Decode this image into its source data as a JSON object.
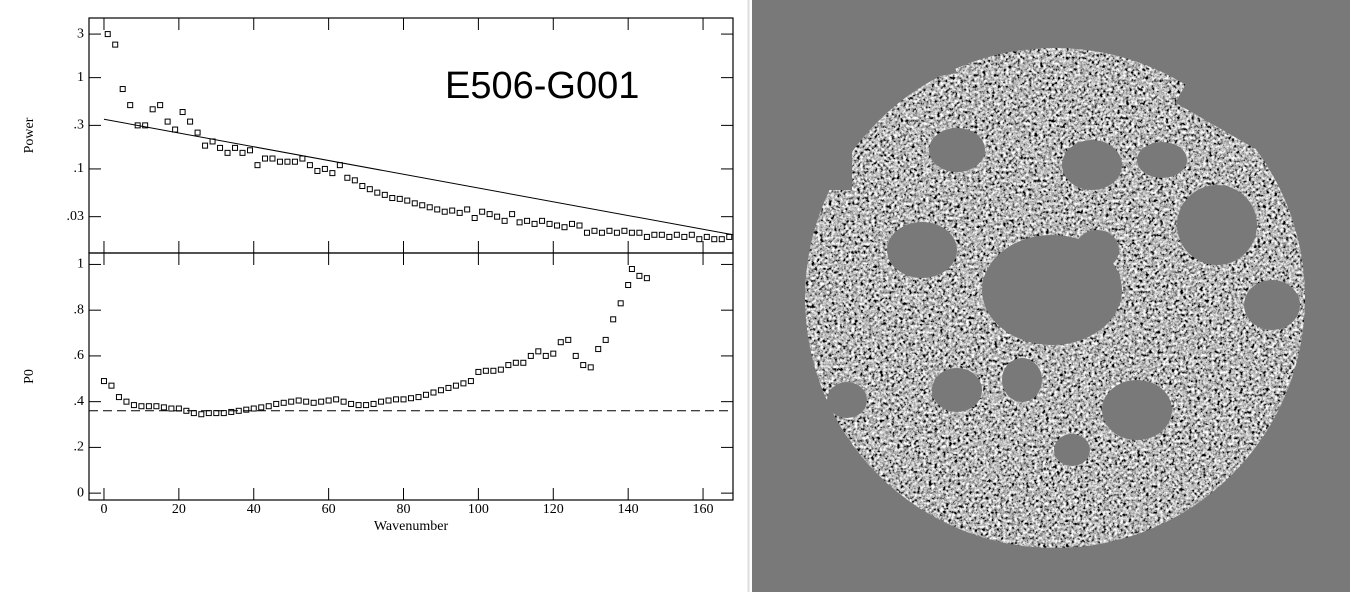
{
  "chart_data": [
    {
      "type": "scatter",
      "log_y": true,
      "ylabel": "Power",
      "annotation": "E506-G001",
      "xlim": [
        -4,
        168
      ],
      "xticks": [
        0,
        20,
        40,
        60,
        80,
        100,
        120,
        140,
        160
      ],
      "xticklabels": false,
      "ylim": [
        0.012,
        4.5
      ],
      "yticks": [
        3,
        1,
        {
          "value": 0.3,
          "label": ".3"
        },
        {
          "value": 0.1,
          "label": ".1"
        },
        {
          "value": 0.03,
          "label": ".03"
        }
      ],
      "series": [
        {
          "marker": "square",
          "x": [
            1,
            3,
            5,
            7,
            9,
            11,
            13,
            15,
            17,
            19,
            21,
            23,
            25,
            27,
            29,
            31,
            33,
            35,
            37,
            39,
            41,
            43,
            45,
            47,
            49,
            51,
            53,
            55,
            57,
            59,
            61,
            63,
            65,
            67,
            69,
            71,
            73,
            75,
            77,
            79,
            81,
            83,
            85,
            87,
            89,
            91,
            93,
            95,
            97,
            99,
            101,
            103,
            105,
            107,
            109,
            111,
            113,
            115,
            117,
            119,
            121,
            123,
            125,
            127,
            129,
            131,
            133,
            135,
            137,
            139,
            141,
            143,
            145,
            147,
            149,
            151,
            153,
            155,
            157,
            159,
            161,
            163,
            165,
            167
          ],
          "values": [
            3,
            2.3,
            0.75,
            0.5,
            0.3,
            0.3,
            0.45,
            0.5,
            0.33,
            0.27,
            0.42,
            0.33,
            0.25,
            0.18,
            0.2,
            0.17,
            0.15,
            0.17,
            0.15,
            0.16,
            0.11,
            0.13,
            0.13,
            0.12,
            0.12,
            0.12,
            0.13,
            0.11,
            0.095,
            0.1,
            0.09,
            0.11,
            0.08,
            0.075,
            0.065,
            0.06,
            0.055,
            0.052,
            0.048,
            0.047,
            0.045,
            0.042,
            0.04,
            0.038,
            0.036,
            0.034,
            0.035,
            0.033,
            0.036,
            0.029,
            0.034,
            0.032,
            0.03,
            0.027,
            0.032,
            0.026,
            0.027,
            0.025,
            0.027,
            0.025,
            0.024,
            0.023,
            0.025,
            0.024,
            0.02,
            0.021,
            0.02,
            0.021,
            0.02,
            0.021,
            0.02,
            0.02,
            0.018,
            0.019,
            0.019,
            0.018,
            0.019,
            0.018,
            0.019,
            0.017,
            0.018,
            0.017,
            0.017,
            0.018
          ]
        },
        {
          "marker": "line",
          "x": [
            0,
            168
          ],
          "values": [
            0.35,
            0.019
          ]
        }
      ]
    },
    {
      "type": "scatter",
      "log_y": false,
      "ylabel": "P0",
      "xlabel": "Wavenumber",
      "xlim": [
        -4,
        168
      ],
      "xticks": [
        0,
        20,
        40,
        60,
        80,
        100,
        120,
        140,
        160
      ],
      "xticklabels": true,
      "ylim": [
        -0.03,
        1.05
      ],
      "yticks": [
        0,
        {
          "value": 0.2,
          "label": ".2"
        },
        {
          "value": 0.4,
          "label": ".4"
        },
        {
          "value": 0.6,
          "label": ".6"
        },
        {
          "value": 0.8,
          "label": ".8"
        },
        1
      ],
      "series": [
        {
          "marker": "square",
          "x": [
            0,
            2,
            4,
            6,
            8,
            10,
            12,
            14,
            16,
            18,
            20,
            22,
            24,
            26,
            28,
            30,
            32,
            34,
            36,
            38,
            40,
            42,
            44,
            46,
            48,
            50,
            52,
            54,
            56,
            58,
            60,
            62,
            64,
            66,
            68,
            70,
            72,
            74,
            76,
            78,
            80,
            82,
            84,
            86,
            88,
            90,
            92,
            94,
            96,
            98,
            100,
            102,
            104,
            106,
            108,
            110,
            112,
            114,
            116,
            118,
            120,
            122,
            124,
            126,
            128,
            130,
            132,
            134,
            136,
            138,
            140,
            141,
            143,
            145
          ],
          "values": [
            0.49,
            0.47,
            0.42,
            0.4,
            0.385,
            0.38,
            0.38,
            0.38,
            0.375,
            0.37,
            0.37,
            0.36,
            0.35,
            0.345,
            0.35,
            0.35,
            0.35,
            0.355,
            0.36,
            0.365,
            0.37,
            0.375,
            0.38,
            0.39,
            0.395,
            0.4,
            0.405,
            0.4,
            0.395,
            0.4,
            0.405,
            0.41,
            0.4,
            0.39,
            0.385,
            0.385,
            0.39,
            0.4,
            0.405,
            0.41,
            0.41,
            0.415,
            0.42,
            0.43,
            0.44,
            0.45,
            0.46,
            0.47,
            0.48,
            0.49,
            0.53,
            0.535,
            0.535,
            0.54,
            0.56,
            0.57,
            0.57,
            0.6,
            0.62,
            0.6,
            0.61,
            0.66,
            0.67,
            0.6,
            0.56,
            0.55,
            0.63,
            0.67,
            0.76,
            0.83,
            0.91,
            0.98,
            0.95,
            0.94
          ]
        },
        {
          "marker": "dashed",
          "x": [
            -4,
            168
          ],
          "values": [
            0.36,
            0.36
          ]
        }
      ]
    }
  ]
}
